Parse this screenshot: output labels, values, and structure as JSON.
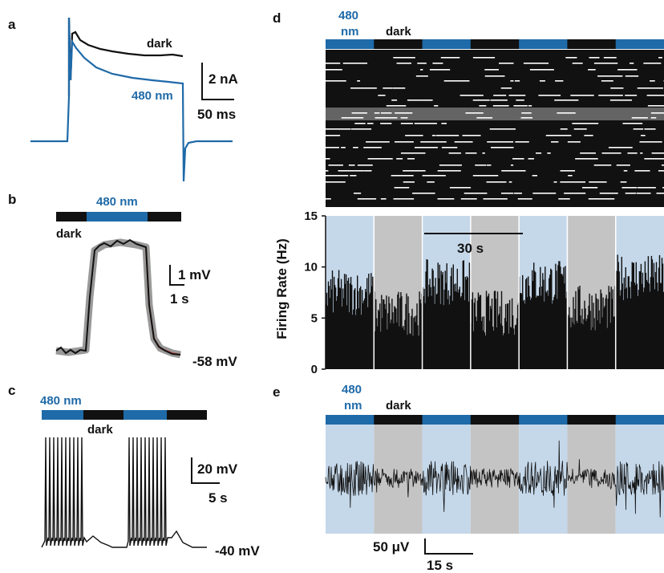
{
  "colors": {
    "blue": "#1f6aa8",
    "light_blue_band": "#c5d8ea",
    "gray_band": "#c4c4c4",
    "black": "#111111"
  },
  "panels": {
    "a": {
      "letter": "a",
      "label_dark": "dark",
      "label_blue": "480 nm",
      "scale_y": "2 nA",
      "scale_x": "50 ms"
    },
    "b": {
      "letter": "b",
      "label_blue": "480 nm",
      "label_dark": "dark",
      "scale_y": "1 mV",
      "scale_x": "1 s",
      "baseline": "-58 mV"
    },
    "c": {
      "letter": "c",
      "label_blue": "480 nm",
      "label_dark": "dark",
      "scale_y": "20 mV",
      "scale_x": "5 s",
      "baseline": "-40 mV"
    },
    "d": {
      "letter": "d",
      "label_blue_line1": "480",
      "label_blue_line2": "nm",
      "label_dark": "dark",
      "scale_x": "30 s"
    },
    "e": {
      "letter": "e",
      "label_blue_line1": "480",
      "label_blue_line2": "nm",
      "label_dark": "dark",
      "scale_y": "50 μV",
      "scale_x": "15 s"
    }
  },
  "chart_data": [
    {
      "panel": "d",
      "type": "bar",
      "ylabel": "Firing Rate (Hz)",
      "ylim": [
        0,
        15
      ],
      "yticks": [
        "0",
        "5",
        "10",
        "15"
      ],
      "segments": [
        {
          "condition": "480 nm",
          "mean_rate": 7.5
        },
        {
          "condition": "dark",
          "mean_rate": 5.5
        },
        {
          "condition": "480 nm",
          "mean_rate": 8.5
        },
        {
          "condition": "dark",
          "mean_rate": 5.5
        },
        {
          "condition": "480 nm",
          "mean_rate": 8.5
        },
        {
          "condition": "dark",
          "mean_rate": 6.0
        },
        {
          "condition": "480 nm",
          "mean_rate": 9.0
        }
      ]
    }
  ]
}
